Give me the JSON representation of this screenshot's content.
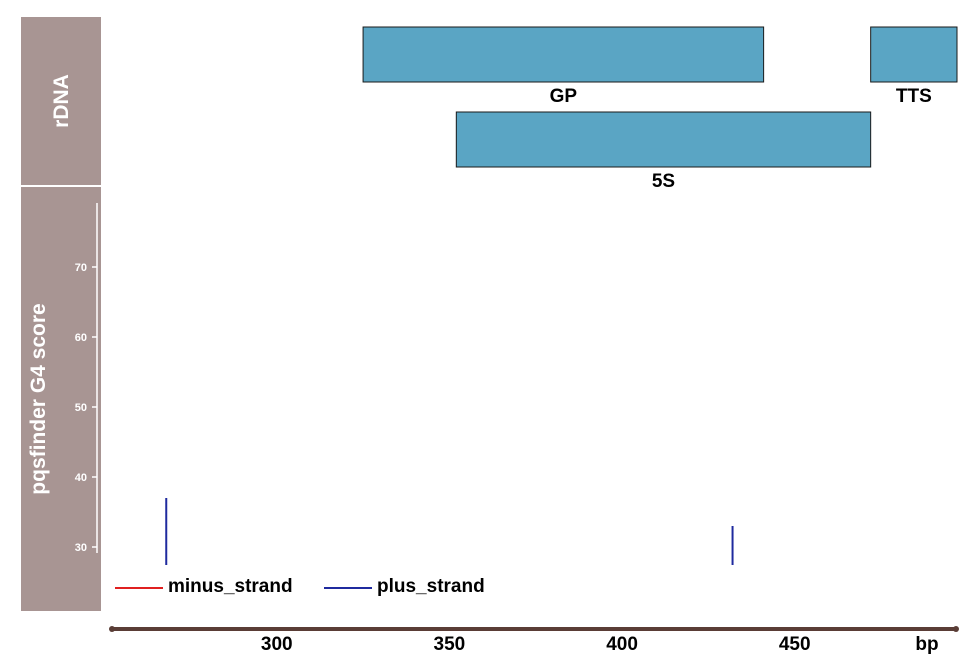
{
  "chart_data": {
    "type": "genome-track",
    "x_unit": "bp",
    "xlim": [
      252,
      497
    ],
    "x_ticks": [
      300,
      350,
      400,
      450
    ],
    "tracks": [
      {
        "name": "rDNA",
        "features": [
          {
            "label": "GP",
            "start": 325,
            "end": 441,
            "row": 0
          },
          {
            "label": "TTS",
            "start": 472,
            "end": 497,
            "row": 0
          },
          {
            "label": "5S",
            "start": 352,
            "end": 472,
            "row": 1
          }
        ],
        "color": "#5aa5c4"
      },
      {
        "name": "pqsfinder G4 score",
        "ylim": [
          20,
          80
        ],
        "y_ticks": [
          30,
          40,
          50,
          60,
          70
        ],
        "series": [
          {
            "name": "minus_strand",
            "color": "#e02020",
            "points": []
          },
          {
            "name": "plus_strand",
            "color": "#1f2a9e",
            "points": [
              {
                "x": 268,
                "y": 37
              },
              {
                "x": 432,
                "y": 33
              }
            ]
          }
        ]
      }
    ],
    "legend": [
      "minus_strand",
      "plus_strand"
    ],
    "legend_placement": "bottom-left",
    "colors": {
      "panel": "#a89593",
      "axis": "#5a3d36"
    }
  }
}
